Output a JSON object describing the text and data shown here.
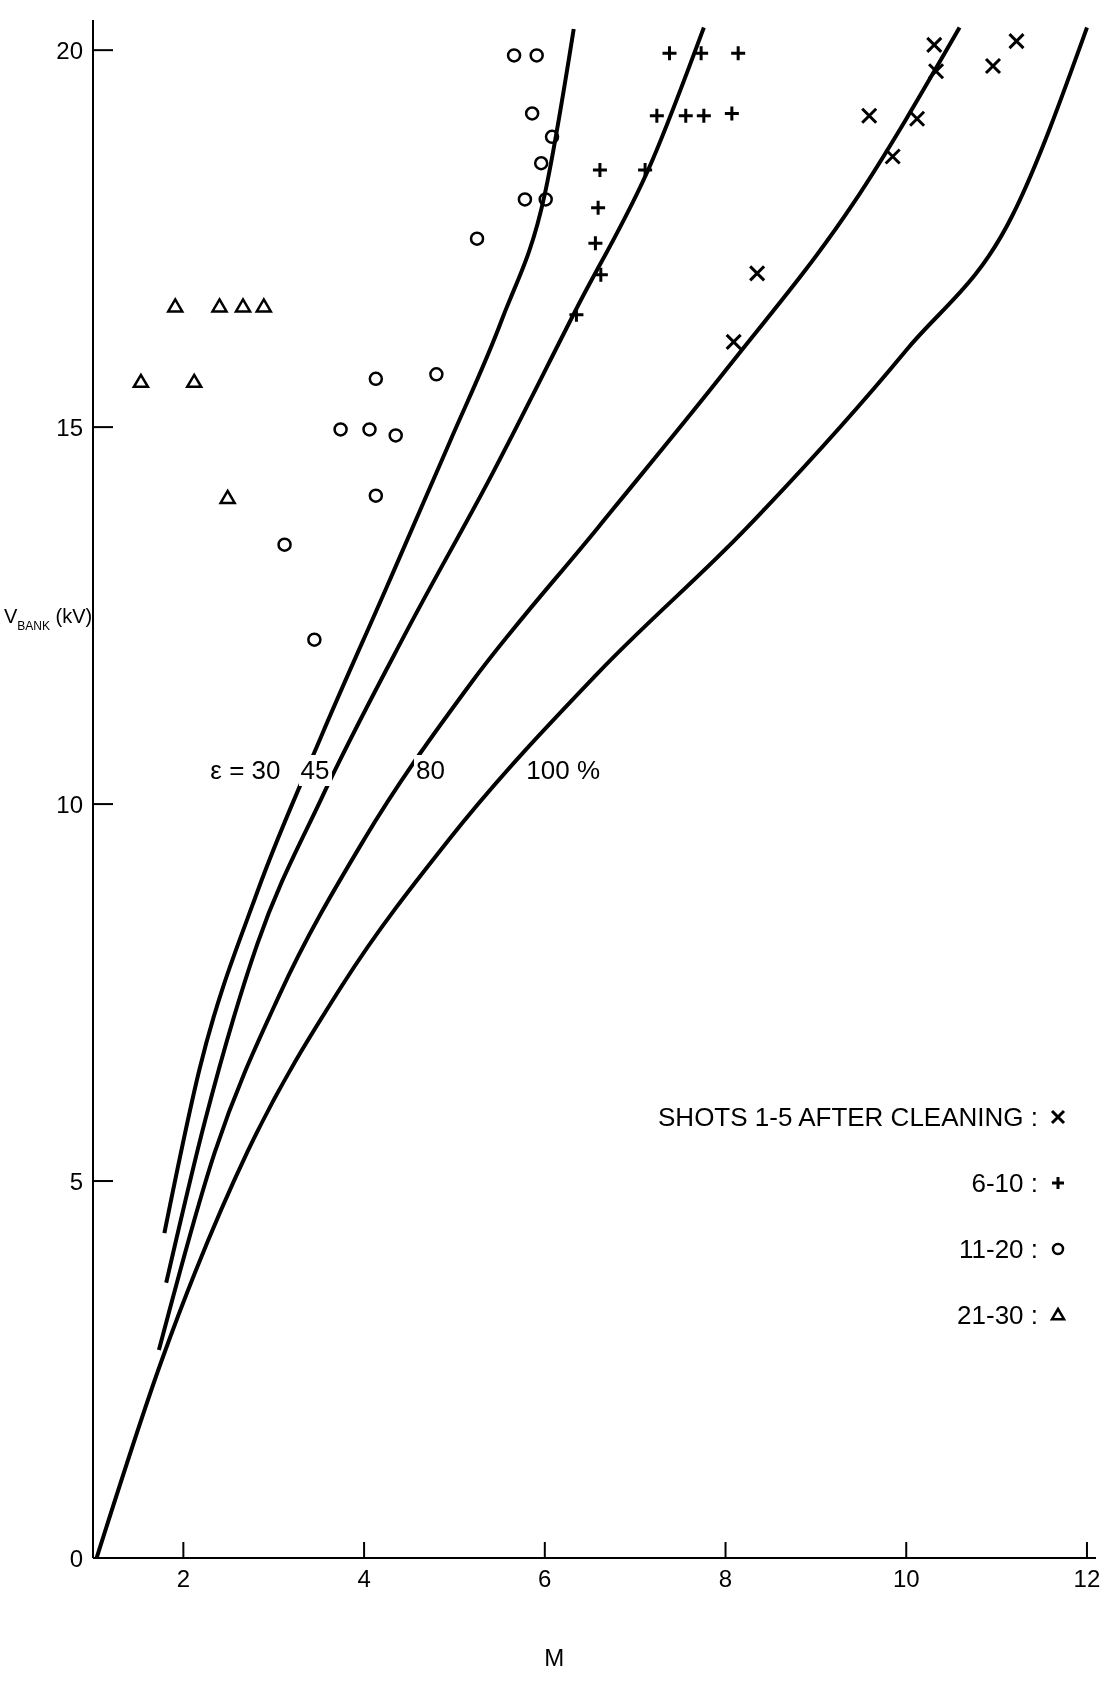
{
  "chart_data": {
    "type": "scatter",
    "xlabel": "M",
    "ylabel": "V$_{BANK}$ (kV)",
    "xlim": [
      1,
      12.1
    ],
    "ylim": [
      0,
      20.4
    ],
    "xticks": [
      2,
      4,
      6,
      8,
      10,
      12
    ],
    "yticks": [
      0,
      5,
      10,
      15,
      20
    ],
    "grid": false,
    "legend": "bottom right",
    "annotations": [
      "ε = 30",
      "45",
      "80",
      "100 %"
    ],
    "series": [
      {
        "name": "SHOTS 1-5 AFTER CLEANING :",
        "marker": "cross",
        "color": "#000000",
        "x": [
          10.31,
          10.33,
          11.22,
          10.96,
          9.59,
          10.12,
          9.85,
          8.35,
          8.09
        ],
        "values": [
          20.07,
          19.72,
          20.12,
          19.79,
          19.13,
          19.09,
          18.59,
          17.04,
          16.13
        ]
      },
      {
        "name": "6-10 :",
        "marker": "plus",
        "color": "#000000",
        "x": [
          7.38,
          7.73,
          8.14,
          7.24,
          7.56,
          7.76,
          8.07,
          7.11,
          6.61,
          6.59,
          6.56,
          6.62,
          6.35
        ],
        "values": [
          19.96,
          19.96,
          19.96,
          19.13,
          19.13,
          19.13,
          19.16,
          18.41,
          18.41,
          17.91,
          17.44,
          17.02,
          16.49
        ]
      },
      {
        "name": "11-20 :",
        "marker": "circle",
        "color": "#000000",
        "x": [
          3.12,
          3.45,
          3.74,
          4.06,
          4.35,
          4.13,
          4.13,
          4.8,
          5.25,
          5.66,
          5.91,
          5.86,
          6.08,
          5.96,
          5.78,
          6.01
        ],
        "values": [
          13.44,
          12.18,
          14.97,
          14.97,
          14.89,
          15.64,
          14.09,
          15.7,
          17.5,
          19.93,
          19.93,
          19.16,
          18.85,
          18.5,
          18.02,
          18.02
        ]
      },
      {
        "name": "21-30 :",
        "marker": "triangle",
        "color": "#000000",
        "x": [
          1.53,
          1.91,
          2.12,
          2.4,
          2.66,
          2.89,
          2.49
        ],
        "values": [
          15.6,
          16.6,
          15.6,
          16.6,
          16.6,
          16.6,
          14.06
        ]
      },
      {
        "type": "line",
        "marker": "none",
        "color": "#000000",
        "x": [
          1.79,
          2.18,
          2.82,
          3.53,
          4.24,
          4.94,
          5.53,
          6.0,
          6.32
        ],
        "values": [
          4.31,
          6.49,
          8.84,
          10.91,
          12.85,
          14.78,
          16.44,
          18.09,
          20.28
        ]
      },
      {
        "type": "line",
        "marker": "none",
        "color": "#000000",
        "x": [
          1.81,
          2.24,
          2.82,
          3.53,
          4.47,
          5.41,
          6.35,
          7.18,
          7.76
        ],
        "values": [
          3.65,
          5.8,
          8.15,
          10.08,
          12.29,
          14.36,
          16.57,
          18.51,
          20.3
        ]
      },
      {
        "type": "line",
        "marker": "none",
        "color": "#000000",
        "x": [
          1.73,
          2.35,
          3.06,
          4.0,
          5.18,
          6.59,
          8.0,
          9.41,
          10.59
        ],
        "values": [
          2.76,
          5.39,
          7.46,
          9.53,
          11.6,
          13.67,
          15.75,
          17.96,
          20.3
        ]
      },
      {
        "type": "line",
        "marker": "none",
        "color": "#000000",
        "x": [
          1.04,
          1.76,
          2.71,
          3.76,
          4.94,
          6.59,
          8.24,
          10.0,
          11.18,
          12.0
        ],
        "values": [
          0,
          2.62,
          5.39,
          7.6,
          9.53,
          11.74,
          13.67,
          16.02,
          17.82,
          20.3
        ]
      }
    ]
  }
}
